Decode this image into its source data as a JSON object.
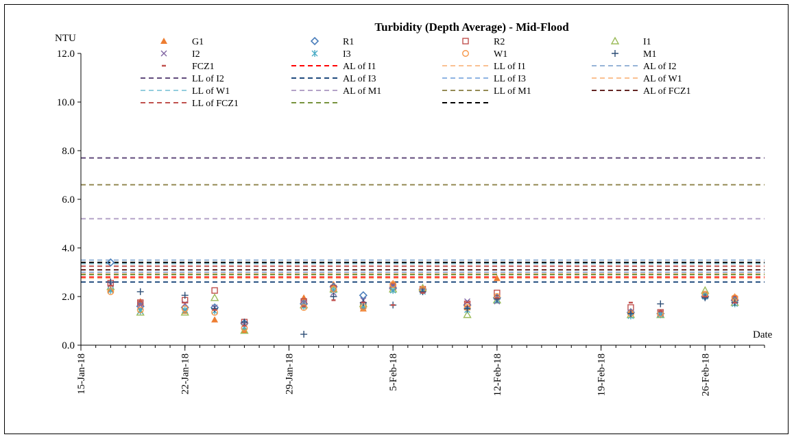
{
  "chart_data": {
    "type": "scatter",
    "title": "Turbidity (Depth Average) - Mid-Flood",
    "ylabel": "NTU",
    "xlabel": "Date",
    "ylim": [
      0,
      12
    ],
    "y_ticks": [
      "0.0",
      "2.0",
      "4.0",
      "6.0",
      "8.0",
      "10.0",
      "12.0"
    ],
    "x_ticks": [
      "15-Jan-18",
      "22-Jan-18",
      "29-Jan-18",
      "5-Feb-18",
      "12-Feb-18",
      "19-Feb-18",
      "26-Feb-18"
    ],
    "x_range": [
      "2018-01-15",
      "2018-03-02"
    ],
    "legend_position": "top",
    "dates": [
      "2018-01-17",
      "2018-01-19",
      "2018-01-22",
      "2018-01-24",
      "2018-01-26",
      "2018-01-30",
      "2018-02-01",
      "2018-02-03",
      "2018-02-05",
      "2018-02-07",
      "2018-02-10",
      "2018-02-12",
      "2018-02-21",
      "2018-02-23",
      "2018-02-26",
      "2018-02-28"
    ],
    "series": [
      {
        "name": "G1",
        "marker": "triangle-filled",
        "color": "#ed7d31",
        "values": [
          2.3,
          1.8,
          1.4,
          1.05,
          0.6,
          1.95,
          2.5,
          1.5,
          2.55,
          2.35,
          1.55,
          2.75,
          1.4,
          1.3,
          2.05,
          2.0
        ]
      },
      {
        "name": "R1",
        "marker": "diamond-open",
        "color": "#4a7ebb",
        "values": [
          3.4,
          1.6,
          1.55,
          1.55,
          0.9,
          1.7,
          2.4,
          2.05,
          2.35,
          2.3,
          1.65,
          1.95,
          1.35,
          1.3,
          2.0,
          1.85
        ]
      },
      {
        "name": "R2",
        "marker": "square-open",
        "color": "#c0504d",
        "values": [
          2.55,
          1.75,
          1.85,
          2.25,
          0.95,
          1.8,
          2.35,
          1.65,
          2.4,
          2.3,
          1.7,
          2.15,
          1.55,
          1.35,
          2.05,
          1.9
        ]
      },
      {
        "name": "I1",
        "marker": "triangle-open",
        "color": "#9bbb59",
        "values": [
          2.4,
          1.35,
          1.35,
          1.95,
          0.6,
          1.65,
          2.3,
          1.7,
          2.3,
          2.35,
          1.25,
          1.85,
          1.25,
          1.25,
          2.25,
          1.75
        ]
      },
      {
        "name": "I2",
        "marker": "x",
        "color": "#8064a2",
        "values": [
          2.5,
          1.65,
          1.7,
          1.55,
          0.85,
          1.75,
          2.15,
          1.85,
          2.45,
          2.25,
          1.8,
          1.8,
          1.35,
          1.3,
          2.0,
          1.8
        ]
      },
      {
        "name": "I3",
        "marker": "asterisk",
        "color": "#4bacc6",
        "values": [
          2.25,
          1.4,
          1.45,
          1.4,
          0.75,
          1.6,
          2.25,
          1.6,
          2.25,
          2.2,
          1.45,
          1.85,
          1.2,
          1.25,
          2.0,
          1.7
        ]
      },
      {
        "name": "W1",
        "marker": "circle-open",
        "color": "#f79646",
        "values": [
          2.2,
          1.45,
          1.5,
          1.35,
          0.7,
          1.55,
          2.3,
          1.55,
          2.5,
          2.3,
          1.55,
          2.0,
          1.3,
          1.3,
          2.1,
          1.95
        ]
      },
      {
        "name": "M1",
        "marker": "plus",
        "color": "#2c4d75",
        "values": [
          2.6,
          2.2,
          2.05,
          1.5,
          0.95,
          0.45,
          2.0,
          1.75,
          1.65,
          2.2,
          1.5,
          1.9,
          1.3,
          1.7,
          1.95,
          1.75
        ]
      },
      {
        "name": "FCZ1",
        "marker": "dash",
        "color": "#c0504d",
        "values": [
          2.45,
          1.8,
          1.75,
          1.45,
          0.8,
          1.6,
          1.85,
          1.75,
          1.65,
          2.15,
          1.75,
          1.95,
          1.75,
          1.4,
          2.0,
          1.75
        ]
      }
    ],
    "limit_lines": [
      {
        "name": "AL of I1",
        "value": 2.8,
        "color": "#ff0000"
      },
      {
        "name": "LL of I1",
        "value": 2.95,
        "color": "#fac090"
      },
      {
        "name": "AL of I2",
        "value": 3.5,
        "color": "#95b3d7"
      },
      {
        "name": "LL of I2",
        "value": 7.7,
        "color": "#604a7b"
      },
      {
        "name": "AL of I3",
        "value": 2.6,
        "color": "#1f497d"
      },
      {
        "name": "LL of I3",
        "value": 3.0,
        "color": "#8db3e2"
      },
      {
        "name": "AL of W1",
        "value": 2.75,
        "color": "#fac090"
      },
      {
        "name": "LL of W1",
        "value": 3.35,
        "color": "#93cddd"
      },
      {
        "name": "AL of M1",
        "value": 5.2,
        "color": "#b3a2c7"
      },
      {
        "name": "LL of M1",
        "value": 6.6,
        "color": "#948a54"
      },
      {
        "name": "AL of FCZ1",
        "value": 3.1,
        "color": "#632523"
      },
      {
        "name": "LL of FCZ1",
        "value": 3.25,
        "color": "#c0504d"
      },
      {
        "name": "",
        "value": 2.9,
        "color": "#77933c"
      },
      {
        "name": "",
        "value": 3.4,
        "color": "#000000"
      }
    ]
  }
}
